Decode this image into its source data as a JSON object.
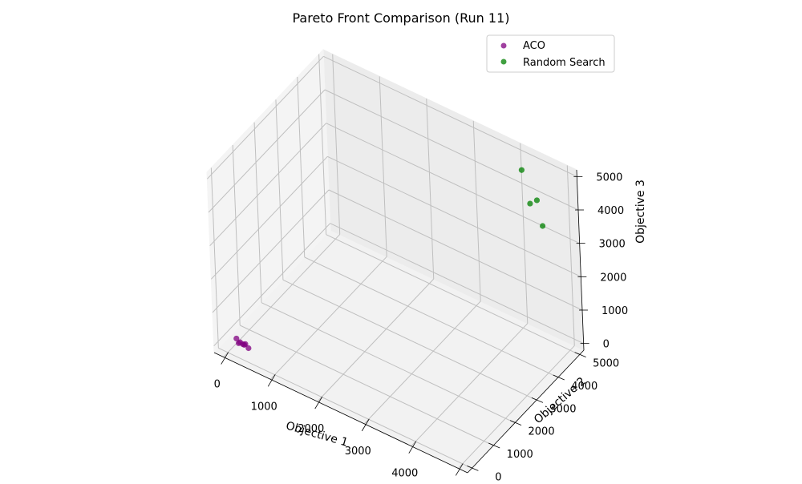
{
  "chart_data": {
    "type": "scatter",
    "projection": "3d",
    "title": "Pareto Front Comparison (Run 11)",
    "xlabel": "Objective 1",
    "ylabel": "Objective 2",
    "zlabel": "Objective 3",
    "xlim": [
      -200,
      5200
    ],
    "ylim": [
      -200,
      5200
    ],
    "zlim": [
      -200,
      5200
    ],
    "xticks": [
      0,
      1000,
      2000,
      3000,
      4000,
      5000
    ],
    "yticks": [
      0,
      1000,
      2000,
      3000,
      4000,
      5000
    ],
    "zticks": [
      0,
      1000,
      2000,
      3000,
      4000,
      5000
    ],
    "grid": true,
    "legend_position": "upper-right",
    "series": [
      {
        "name": "ACO",
        "color": "#800080",
        "points": [
          {
            "x": 150,
            "y": 100,
            "z": 250
          },
          {
            "x": 230,
            "y": 90,
            "z": 200
          },
          {
            "x": 180,
            "y": 130,
            "z": 110
          },
          {
            "x": 290,
            "y": 150,
            "z": 120
          },
          {
            "x": 240,
            "y": 190,
            "z": 80
          },
          {
            "x": 370,
            "y": 170,
            "z": 60
          },
          {
            "x": 320,
            "y": 140,
            "z": 170
          }
        ]
      },
      {
        "name": "Random Search",
        "color": "#008000",
        "points": [
          {
            "x": 4200,
            "y": 4800,
            "z": 4800
          },
          {
            "x": 4700,
            "y": 4400,
            "z": 4500
          },
          {
            "x": 4900,
            "y": 4200,
            "z": 4000
          },
          {
            "x": 4500,
            "y": 4500,
            "z": 4200
          }
        ]
      }
    ]
  }
}
